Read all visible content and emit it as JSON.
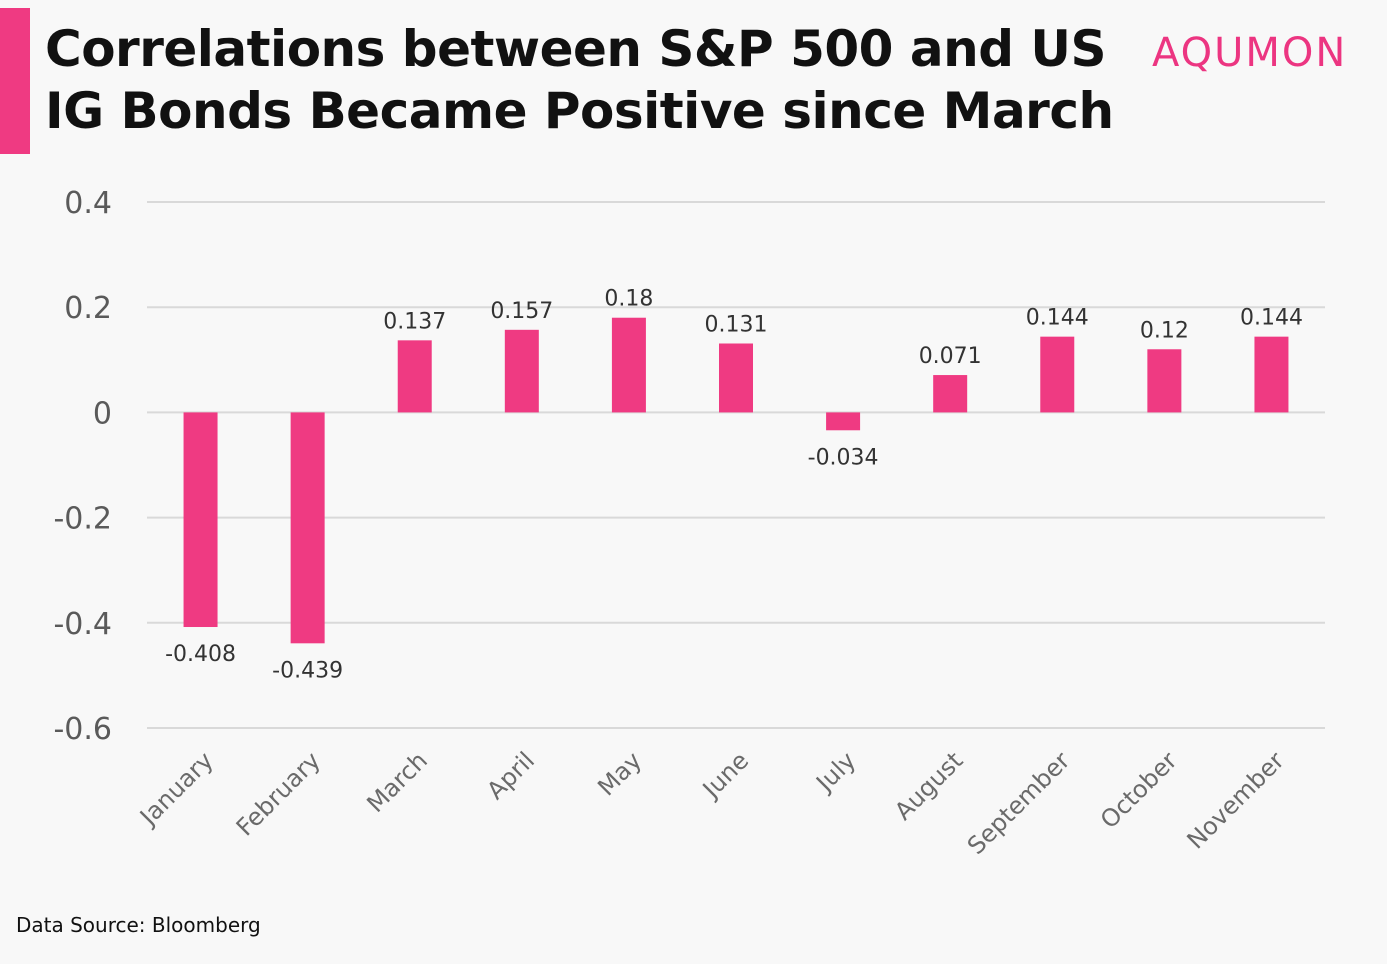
{
  "header": {
    "title": "Correlations between S&P 500 and US IG Bonds Became Positive since March",
    "logo": "AQUMON"
  },
  "footer": {
    "source": "Data Source: Bloomberg"
  },
  "colors": {
    "accent": "#ef3a82",
    "bar": "#ef3a82",
    "grid": "#d9d9d9"
  },
  "chart_data": {
    "type": "bar",
    "title": "Correlations between S&P 500 and US IG Bonds Became Positive since March",
    "categories": [
      "January",
      "February",
      "March",
      "April",
      "May",
      "June",
      "July",
      "August",
      "September",
      "October",
      "November"
    ],
    "values": [
      -0.408,
      -0.439,
      0.137,
      0.157,
      0.18,
      0.131,
      -0.034,
      0.071,
      0.144,
      0.12,
      0.144
    ],
    "y_ticks": [
      "0.4",
      "0.2",
      "0",
      "-0.2",
      "-0.4",
      "-0.6"
    ],
    "ylim": [
      -0.6,
      0.4
    ],
    "grid": true,
    "legend": false,
    "xlabel": "",
    "ylabel": ""
  }
}
